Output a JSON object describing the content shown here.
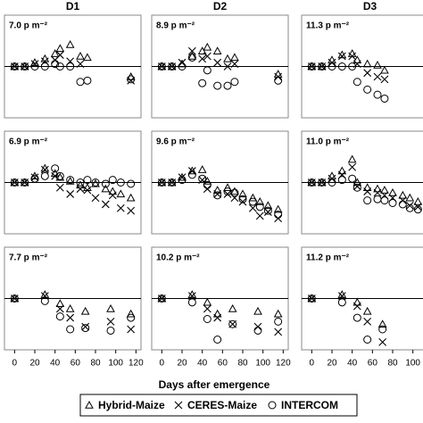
{
  "xlabel": "Days after emergence",
  "chart_data": [
    {
      "type": "scatter",
      "title": "D1",
      "label": "7.0 p m⁻²",
      "hline": 0,
      "xlim": [
        -10,
        125
      ],
      "ylim": [
        -4,
        4
      ],
      "x": [
        0,
        10,
        20,
        30,
        40,
        45,
        55,
        65,
        72,
        115
      ],
      "series": [
        {
          "name": "Hybrid-Maize",
          "marker": "triangle",
          "color": "#000000",
          "values": [
            0,
            0,
            0.3,
            0.6,
            1.0,
            1.4,
            1.7,
            0.8,
            0.7,
            -0.8
          ]
        },
        {
          "name": "CERES-Maize",
          "marker": "cross",
          "color": "#000000",
          "values": [
            0,
            0,
            0.2,
            0.4,
            0.5,
            0.9,
            0.4,
            0.2,
            null,
            -1.1
          ]
        },
        {
          "name": "INTERCOM",
          "marker": "circle",
          "color": "#000000",
          "values": [
            0,
            0,
            0,
            0,
            0.2,
            0,
            0,
            -1.2,
            -1.1,
            -1.0
          ]
        }
      ]
    },
    {
      "type": "scatter",
      "title": "D2",
      "label": "8.9 p m⁻²",
      "hline": 0,
      "xlim": [
        -10,
        125
      ],
      "ylim": [
        -4,
        4
      ],
      "x": [
        0,
        10,
        20,
        30,
        40,
        45,
        55,
        65,
        72,
        115
      ],
      "series": [
        {
          "name": "Hybrid-Maize",
          "marker": "triangle",
          "color": "#000000",
          "values": [
            0,
            0,
            0.2,
            0.8,
            1.2,
            1.5,
            1.2,
            0.6,
            0.7,
            -0.6
          ]
        },
        {
          "name": "CERES-Maize",
          "marker": "cross",
          "color": "#000000",
          "values": [
            0,
            0,
            0.3,
            1.2,
            0.6,
            0.8,
            0.3,
            0,
            0.2,
            -0.8
          ]
        },
        {
          "name": "INTERCOM",
          "marker": "circle",
          "color": "#000000",
          "values": [
            0,
            0,
            0,
            0.7,
            -1.3,
            -0.3,
            -1.5,
            -1.5,
            -1.2,
            -1.1
          ]
        }
      ]
    },
    {
      "type": "scatter",
      "title": "D3",
      "label": "11.3 p m⁻²",
      "hline": 0,
      "xlim": [
        -10,
        125
      ],
      "ylim": [
        -4,
        4
      ],
      "x": [
        0,
        10,
        20,
        30,
        40,
        45,
        55,
        65,
        72,
        115
      ],
      "series": [
        {
          "name": "Hybrid-Maize",
          "marker": "triangle",
          "color": "#000000",
          "values": [
            0,
            0,
            0.5,
            0.9,
            1.0,
            0.5,
            0.2,
            0.1,
            -0.3,
            null
          ]
        },
        {
          "name": "CERES-Maize",
          "marker": "cross",
          "color": "#000000",
          "values": [
            0,
            0,
            0.3,
            0.8,
            0.8,
            0.2,
            -0.5,
            -0.8,
            -1.0,
            null
          ]
        },
        {
          "name": "INTERCOM",
          "marker": "circle",
          "color": "#000000",
          "values": [
            0,
            0,
            0,
            0,
            0,
            -1.2,
            -1.8,
            -2.2,
            -2.5,
            null
          ]
        }
      ]
    },
    {
      "type": "scatter",
      "label": "6.9 p m⁻²",
      "hline": 0,
      "xlim": [
        -10,
        125
      ],
      "ylim": [
        -4,
        4
      ],
      "x": [
        0,
        10,
        20,
        30,
        40,
        45,
        55,
        65,
        72,
        80,
        90,
        97,
        105,
        115
      ],
      "series": [
        {
          "name": "Hybrid-Maize",
          "marker": "triangle",
          "color": "#000000",
          "values": [
            0,
            0,
            0.5,
            1.1,
            0.7,
            0.4,
            0.1,
            -0.2,
            -0.4,
            -0.1,
            -0.5,
            -0.7,
            -0.9,
            -1.2
          ]
        },
        {
          "name": "CERES-Maize",
          "marker": "cross",
          "color": "#000000",
          "values": [
            0,
            0,
            0.4,
            1.0,
            0.5,
            -0.4,
            -0.9,
            -0.5,
            -0.6,
            -1.2,
            -1.7,
            -1.0,
            -2.0,
            -2.2
          ]
        },
        {
          "name": "INTERCOM",
          "marker": "circle",
          "color": "#000000",
          "values": [
            0,
            0,
            0.3,
            0.5,
            1.1,
            0.5,
            0.2,
            0,
            0.2,
            0,
            -0.1,
            0.2,
            0,
            -0.1
          ]
        }
      ]
    },
    {
      "type": "scatter",
      "label": "9.6 p m⁻²",
      "hline": 0,
      "xlim": [
        -10,
        125
      ],
      "ylim": [
        -4,
        4
      ],
      "x": [
        0,
        10,
        20,
        30,
        40,
        45,
        55,
        65,
        72,
        80,
        90,
        97,
        105,
        115
      ],
      "series": [
        {
          "name": "Hybrid-Maize",
          "marker": "triangle",
          "color": "#000000",
          "values": [
            0,
            0,
            0.4,
            0.9,
            1.0,
            0.1,
            -0.6,
            -0.4,
            -0.7,
            -0.9,
            -1.2,
            -1.5,
            -1.8,
            -2.1
          ]
        },
        {
          "name": "CERES-Maize",
          "marker": "cross",
          "color": "#000000",
          "values": [
            0,
            0,
            0.4,
            0.9,
            0.2,
            -0.5,
            -0.9,
            -0.9,
            -1.2,
            -1.5,
            -2.0,
            -2.6,
            -2.3,
            -2.8
          ]
        },
        {
          "name": "INTERCOM",
          "marker": "circle",
          "color": "#000000",
          "values": [
            0,
            0,
            0.2,
            0.6,
            0.3,
            -0.2,
            -1.0,
            -0.7,
            -0.8,
            -1.3,
            -1.5,
            -1.9,
            -2.2,
            -2.5
          ]
        }
      ]
    },
    {
      "type": "scatter",
      "label": "11.0 p m⁻²",
      "hline": 0,
      "xlim": [
        -10,
        125
      ],
      "ylim": [
        -4,
        4
      ],
      "x": [
        0,
        10,
        20,
        30,
        40,
        45,
        55,
        65,
        72,
        80,
        90,
        97,
        105,
        115
      ],
      "series": [
        {
          "name": "Hybrid-Maize",
          "marker": "triangle",
          "color": "#000000",
          "values": [
            0,
            0,
            0.5,
            0.9,
            1.8,
            0,
            -0.4,
            -0.5,
            -0.6,
            -0.8,
            -1.0,
            -1.2,
            -1.5,
            -1.7
          ]
        },
        {
          "name": "CERES-Maize",
          "marker": "cross",
          "color": "#000000",
          "values": [
            0,
            0,
            0.3,
            0.6,
            1.2,
            -0.3,
            -0.7,
            -0.8,
            -1.0,
            -1.2,
            -1.4,
            -1.8,
            -1.9,
            -2.3
          ]
        },
        {
          "name": "INTERCOM",
          "marker": "circle",
          "color": "#000000",
          "values": [
            0,
            0,
            0,
            0.2,
            0.3,
            -0.4,
            -1.4,
            -1.3,
            -1.4,
            -1.6,
            -1.7,
            -2.0,
            -2.1,
            -2.2
          ]
        }
      ]
    },
    {
      "type": "scatter",
      "label": "7.7 p m⁻²",
      "hline": 0,
      "xlim": [
        -10,
        125
      ],
      "ylim": [
        -4,
        4
      ],
      "xticks": [
        0,
        20,
        40,
        60,
        80,
        100,
        120
      ],
      "x": [
        0,
        30,
        45,
        55,
        70,
        95,
        115
      ],
      "series": [
        {
          "name": "Hybrid-Maize",
          "marker": "triangle",
          "color": "#000000",
          "values": [
            0,
            0.3,
            -0.4,
            -0.8,
            -1.0,
            -0.8,
            -1.2
          ]
        },
        {
          "name": "CERES-Maize",
          "marker": "cross",
          "color": "#000000",
          "values": [
            0,
            0.2,
            -0.8,
            -1.5,
            -2.2,
            -1.8,
            -2.4
          ]
        },
        {
          "name": "INTERCOM",
          "marker": "circle",
          "color": "#000000",
          "values": [
            0,
            -0.2,
            -1.4,
            -2.4,
            -2.3,
            -2.5,
            -1.5
          ]
        }
      ]
    },
    {
      "type": "scatter",
      "label": "10.2 p m⁻²",
      "hline": 0,
      "xlim": [
        -10,
        125
      ],
      "ylim": [
        -4,
        4
      ],
      "xticks": [
        0,
        20,
        40,
        60,
        80,
        100,
        120
      ],
      "x": [
        0,
        30,
        45,
        55,
        70,
        95,
        115
      ],
      "series": [
        {
          "name": "Hybrid-Maize",
          "marker": "triangle",
          "color": "#000000",
          "values": [
            0,
            0.3,
            -0.3,
            -1.2,
            -0.8,
            -1.0,
            -1.2
          ]
        },
        {
          "name": "CERES-Maize",
          "marker": "cross",
          "color": "#000000",
          "values": [
            0,
            0.2,
            -0.8,
            -1.5,
            -2.0,
            -2.2,
            -2.6
          ]
        },
        {
          "name": "INTERCOM",
          "marker": "circle",
          "color": "#000000",
          "values": [
            0,
            -0.3,
            -1.6,
            -3.2,
            -2.0,
            -2.5,
            -1.8
          ]
        }
      ]
    },
    {
      "type": "scatter",
      "label": "11.2 p m⁻²",
      "hline": 0,
      "xlim": [
        -10,
        125
      ],
      "ylim": [
        -4,
        4
      ],
      "xticks": [
        0,
        20,
        40,
        60,
        80,
        100,
        120
      ],
      "x": [
        0,
        30,
        45,
        55,
        70,
        95,
        115
      ],
      "series": [
        {
          "name": "Hybrid-Maize",
          "marker": "triangle",
          "color": "#000000",
          "values": [
            0,
            0.3,
            -0.3,
            -1.0,
            -2.0,
            null,
            -1.2
          ]
        },
        {
          "name": "CERES-Maize",
          "marker": "cross",
          "color": "#000000",
          "values": [
            0,
            0.2,
            -0.6,
            -1.8,
            -3.4,
            null,
            -2.6
          ]
        },
        {
          "name": "INTERCOM",
          "marker": "circle",
          "color": "#000000",
          "values": [
            0,
            -0.3,
            -1.5,
            -3.2,
            -2.4,
            null,
            -1.8
          ]
        }
      ]
    }
  ]
}
